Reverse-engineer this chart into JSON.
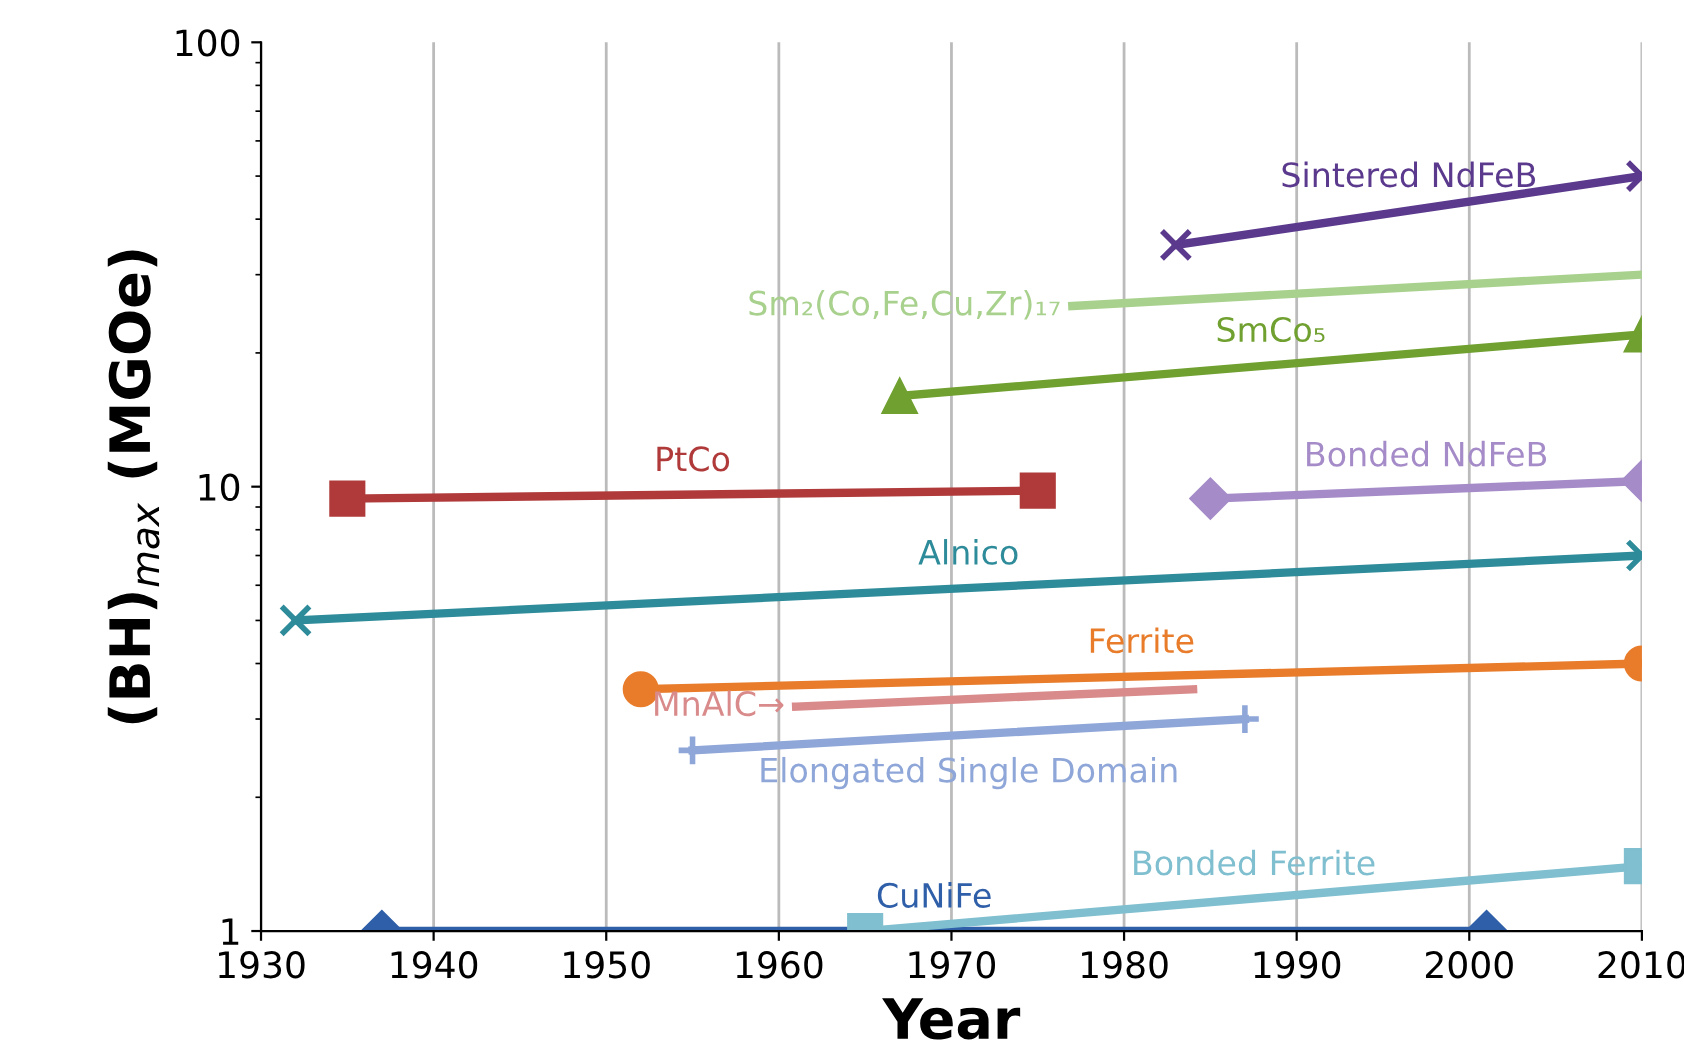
{
  "chart_data": {
    "type": "line",
    "xlabel": "Year",
    "ylabel": "(BH)$_{max}$ (MGOe)",
    "log": "y",
    "xlim": [
      1930,
      2010
    ],
    "xticks": [
      1930,
      1940,
      1950,
      1960,
      1970,
      1980,
      1990,
      2000,
      2010
    ],
    "ylim": [
      1,
      100
    ],
    "yticks": [
      1,
      10,
      100
    ],
    "grid": "x",
    "series": [
      {
        "name": "Sintered NdFeB",
        "color": "#5b3a8e",
        "marker": "cross",
        "x": [
          1983,
          2010
        ],
        "values": [
          35,
          50
        ]
      },
      {
        "name": "Sm₂(Co,Fe,Cu,Zr)₁₇",
        "color": "#a9d18e",
        "marker": "none",
        "x": [
          1977,
          2010
        ],
        "values": [
          25.5,
          30
        ]
      },
      {
        "name": "SmCo₅",
        "color": "#70a030",
        "marker": "triangle",
        "x": [
          1967,
          2010
        ],
        "values": [
          16,
          22
        ]
      },
      {
        "name": "PtCo",
        "color": "#b03a3a",
        "marker": "square",
        "x": [
          1935,
          1975
        ],
        "values": [
          9.4,
          9.8
        ]
      },
      {
        "name": "Bonded NdFeB",
        "color": "#a58cc8",
        "marker": "diamond",
        "x": [
          1985,
          2010
        ],
        "values": [
          9.4,
          10.3
        ]
      },
      {
        "name": "Alnico",
        "color": "#2e8b9a",
        "marker": "cross",
        "x": [
          1932,
          2010
        ],
        "values": [
          5,
          7
        ]
      },
      {
        "name": "Ferrite",
        "color": "#e87c2a",
        "marker": "circle",
        "x": [
          1952,
          2010
        ],
        "values": [
          3.5,
          4
        ]
      },
      {
        "name": "MnAlC→",
        "color": "#d98a8a",
        "marker": "none",
        "x": [
          1961,
          1984
        ],
        "values": [
          3.2,
          3.5
        ]
      },
      {
        "name": "Elongated Single Domain",
        "color": "#8ea6d8",
        "marker": "plus",
        "x": [
          1955,
          1987
        ],
        "values": [
          2.55,
          3
        ]
      },
      {
        "name": "CuNiFe",
        "color": "#2f5fa8",
        "marker": "diamond",
        "x": [
          1937,
          2001
        ],
        "values": [
          1,
          1
        ]
      },
      {
        "name": "Bonded Ferrite",
        "color": "#7fbfcf",
        "marker": "square",
        "x": [
          1965,
          2010
        ],
        "values": [
          1,
          1.4
        ]
      }
    ]
  }
}
